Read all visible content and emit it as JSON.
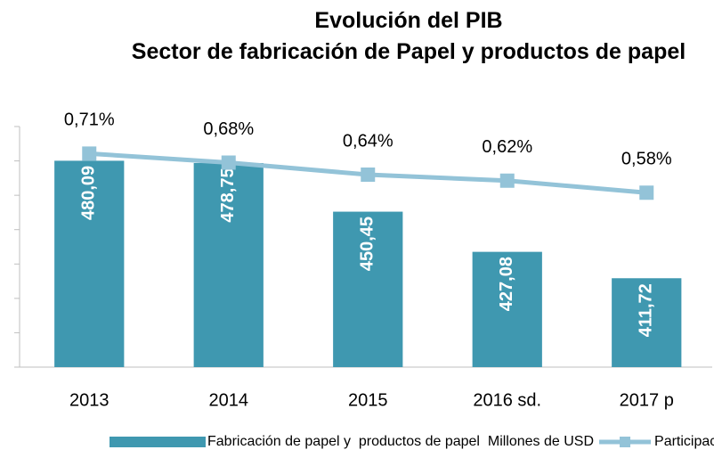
{
  "chart_data": {
    "type": "bar+line",
    "title": "Evolución del PIB",
    "subtitle": "Sector de fabricación de Papel y productos de papel",
    "categories": [
      "2013",
      "2014",
      "2015",
      "2016 sd.",
      "2017 p"
    ],
    "series": [
      {
        "name": "Fabricación de papel y  productos de papel  Millones de USD",
        "type": "bar",
        "color": "#3f98b0",
        "values": [
          480.09,
          478.75,
          450.45,
          427.08,
          411.72
        ],
        "value_labels": [
          "480,09",
          "478,75",
          "450,45",
          "427,08",
          "411,72"
        ]
      },
      {
        "name": "Participación",
        "type": "line",
        "axis": "y2",
        "color": "#93c3d8",
        "values": [
          0.71,
          0.68,
          0.64,
          0.62,
          0.58
        ],
        "value_labels": [
          "0,71%",
          "0,68%",
          "0,64%",
          "0,62%",
          "0,58%"
        ]
      }
    ],
    "ylim": [
      360,
      500
    ],
    "yticks": [
      360,
      380,
      400,
      420,
      440,
      460,
      480,
      500
    ],
    "y2lim": [
      0,
      0.8
    ],
    "legend": "bottom"
  }
}
